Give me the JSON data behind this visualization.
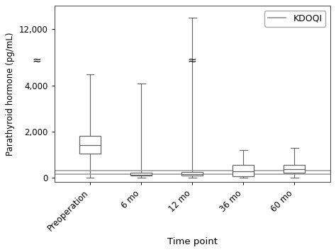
{
  "categories": [
    "Preoperation",
    "6 mo",
    "12 mo",
    "36 mo",
    "60 mo"
  ],
  "boxes": [
    {
      "whislo": 0,
      "q1": 1050,
      "median": 1400,
      "q3": 1800,
      "whishi": 4500
    },
    {
      "whislo": 0,
      "q1": 80,
      "median": 130,
      "q3": 200,
      "whishi": 4100
    },
    {
      "whislo": 0,
      "q1": 100,
      "median": 160,
      "q3": 240,
      "whishi": 12500
    },
    {
      "whislo": 0,
      "q1": 50,
      "median": 280,
      "q3": 550,
      "whishi": 1200
    },
    {
      "whislo": 0,
      "q1": 200,
      "median": 360,
      "q3": 560,
      "whishi": 1300
    }
  ],
  "kdoqi_lines": [
    150,
    300
  ],
  "ylabel": "Parathyroid hormone (pg/mL)",
  "xlabel": "Time point",
  "ytick_labels": [
    "0",
    "2,000",
    "4,000",
    "12,000"
  ],
  "ytick_vals": [
    0,
    2000,
    4000,
    12000
  ],
  "ylim_display": [
    -200,
    13000
  ],
  "break_low": 4700,
  "break_high": 11000,
  "scale_factor": 0.12,
  "legend_label": "KDOQI",
  "bg_color": "#ffffff",
  "box_color": "#ffffff",
  "box_edge_color": "#666666",
  "whisker_color": "#666666",
  "kdoqi_color": "#999999",
  "box_width": 0.42
}
